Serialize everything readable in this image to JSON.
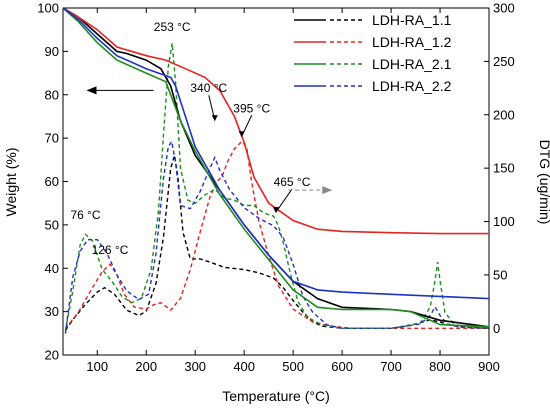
{
  "chart_data": {
    "type": "line",
    "xlabel": "Temperature (°C)",
    "ylabel_left": "Weight (%)",
    "ylabel_right": "DTG (ug/min)",
    "xlim": [
      30,
      900
    ],
    "ylim_left": [
      20,
      100
    ],
    "ylim_right": [
      -25,
      300
    ],
    "x_ticks": [
      100,
      200,
      300,
      400,
      500,
      600,
      700,
      800,
      900
    ],
    "y_left_ticks": [
      20,
      30,
      40,
      50,
      60,
      70,
      80,
      90,
      100
    ],
    "y_right_ticks": [
      0,
      50,
      100,
      150,
      200,
      250,
      300
    ],
    "legend_position": "top-right",
    "legend": [
      {
        "label": "LDH-RA_1.1",
        "color": "#000000"
      },
      {
        "label": "LDH-RA_1.2",
        "color": "#e8231e"
      },
      {
        "label": "LDH-RA_2.1",
        "color": "#1e8c1e"
      },
      {
        "label": "LDH-RA_2.2",
        "color": "#2031c8"
      }
    ],
    "annotations": [
      {
        "text": "76 °C",
        "x": 76,
        "y_dtg": 93
      },
      {
        "text": "126 °C",
        "x": 126,
        "y_dtg": 60
      },
      {
        "text": "253 °C",
        "x": 253,
        "y_dtg": 267
      },
      {
        "text": "340 °C",
        "x": 340,
        "y_dtg": 193
      },
      {
        "text": "395 °C",
        "x": 395,
        "y_dtg": 178
      },
      {
        "text": "465 °C",
        "x": 465,
        "y_dtg": 107
      }
    ],
    "weight_series": [
      {
        "name": "LDH-RA_1.1",
        "color": "#000000",
        "x": [
          30,
          60,
          100,
          140,
          160,
          200,
          230,
          250,
          270,
          300,
          350,
          400,
          450,
          500,
          550,
          600,
          700,
          740,
          800,
          900
        ],
        "y": [
          100,
          98,
          94,
          90,
          89.5,
          88,
          86,
          82,
          74,
          66,
          58,
          50,
          43,
          37,
          33,
          31,
          30.5,
          30,
          28,
          26.5
        ]
      },
      {
        "name": "LDH-RA_1.2",
        "color": "#e8231e",
        "x": [
          30,
          60,
          100,
          140,
          200,
          240,
          280,
          320,
          350,
          380,
          400,
          420,
          450,
          500,
          550,
          600,
          700,
          800,
          900
        ],
        "y": [
          100,
          98,
          95,
          91,
          89,
          88,
          86,
          84,
          81,
          75,
          69,
          61,
          55,
          51,
          49,
          48.5,
          48.2,
          48,
          48
        ]
      },
      {
        "name": "LDH-RA_2.1",
        "color": "#1e8c1e",
        "x": [
          30,
          60,
          100,
          140,
          200,
          240,
          250,
          270,
          300,
          350,
          400,
          450,
          500,
          550,
          600,
          700,
          740,
          780,
          800,
          900
        ],
        "y": [
          100,
          97,
          92,
          88,
          85,
          83,
          80,
          74,
          67,
          57,
          49,
          42,
          35,
          31,
          30.5,
          30.5,
          30,
          28,
          27,
          26.5
        ]
      },
      {
        "name": "LDH-RA_2.2",
        "color": "#2031c8",
        "x": [
          30,
          60,
          100,
          140,
          200,
          250,
          260,
          280,
          300,
          350,
          400,
          450,
          500,
          550,
          600,
          700,
          800,
          900
        ],
        "y": [
          100,
          97.5,
          93,
          89,
          86,
          84,
          82,
          75,
          68,
          58,
          50,
          43,
          37,
          35,
          34.5,
          34,
          33.5,
          33
        ]
      }
    ],
    "dtg_series": [
      {
        "name": "LDH-RA_1.1",
        "color": "#000000",
        "x": [
          35,
          50,
          75,
          100,
          115,
          135,
          160,
          185,
          200,
          220,
          235,
          250,
          258,
          265,
          275,
          290,
          310,
          330,
          360,
          400,
          430,
          460,
          480,
          500,
          520,
          540,
          560,
          600,
          650,
          700,
          730,
          750,
          780,
          800,
          820,
          850,
          900
        ],
        "y": [
          -2,
          8,
          22,
          34,
          38,
          32,
          17,
          12,
          16,
          42,
          85,
          150,
          162,
          140,
          90,
          65,
          65,
          62,
          57,
          55,
          52,
          47,
          38,
          26,
          15,
          6,
          2,
          0,
          0,
          0,
          2,
          4,
          8,
          6,
          3,
          1,
          0
        ]
      },
      {
        "name": "LDH-RA_1.2",
        "color": "#e8231e",
        "x": [
          35,
          60,
          90,
          110,
          126,
          140,
          155,
          175,
          200,
          215,
          230,
          250,
          270,
          290,
          310,
          330,
          345,
          355,
          365,
          380,
          395,
          405,
          415,
          430,
          450,
          470,
          500,
          540,
          580,
          620,
          700,
          800,
          900
        ],
        "y": [
          0,
          14,
          38,
          53,
          60,
          50,
          32,
          20,
          18,
          22,
          24,
          17,
          28,
          55,
          90,
          123,
          138,
          142,
          155,
          168,
          175,
          170,
          138,
          100,
          68,
          40,
          18,
          6,
          2,
          0,
          0,
          0,
          0
        ]
      },
      {
        "name": "LDH-RA_2.1",
        "color": "#1e8c1e",
        "x": [
          35,
          50,
          65,
          76,
          90,
          110,
          130,
          150,
          170,
          190,
          210,
          225,
          235,
          245,
          253,
          260,
          270,
          285,
          300,
          320,
          340,
          360,
          380,
          400,
          420,
          440,
          460,
          470,
          480,
          495,
          510,
          530,
          560,
          600,
          700,
          760,
          780,
          790,
          795,
          800,
          810,
          830,
          900
        ],
        "y": [
          -2,
          35,
          78,
          88,
          82,
          55,
          44,
          30,
          24,
          28,
          55,
          110,
          180,
          245,
          267,
          230,
          150,
          120,
          117,
          125,
          130,
          122,
          120,
          115,
          115,
          108,
          105,
          96,
          80,
          50,
          25,
          10,
          3,
          0,
          0,
          5,
          20,
          45,
          62,
          45,
          15,
          3,
          0
        ]
      },
      {
        "name": "LDH-RA_2.2",
        "color": "#2031c8",
        "x": [
          35,
          50,
          65,
          80,
          100,
          120,
          140,
          160,
          185,
          205,
          220,
          235,
          245,
          252,
          260,
          270,
          290,
          310,
          330,
          340,
          350,
          370,
          400,
          430,
          460,
          480,
          500,
          520,
          540,
          570,
          600,
          700,
          760,
          780,
          790,
          800,
          815,
          840,
          900
        ],
        "y": [
          -5,
          48,
          72,
          83,
          83,
          70,
          50,
          35,
          27,
          32,
          70,
          140,
          170,
          175,
          155,
          115,
          112,
          128,
          150,
          160,
          148,
          130,
          113,
          103,
          96,
          85,
          60,
          30,
          15,
          3,
          0,
          0,
          4,
          12,
          20,
          12,
          4,
          1,
          0
        ]
      }
    ]
  }
}
